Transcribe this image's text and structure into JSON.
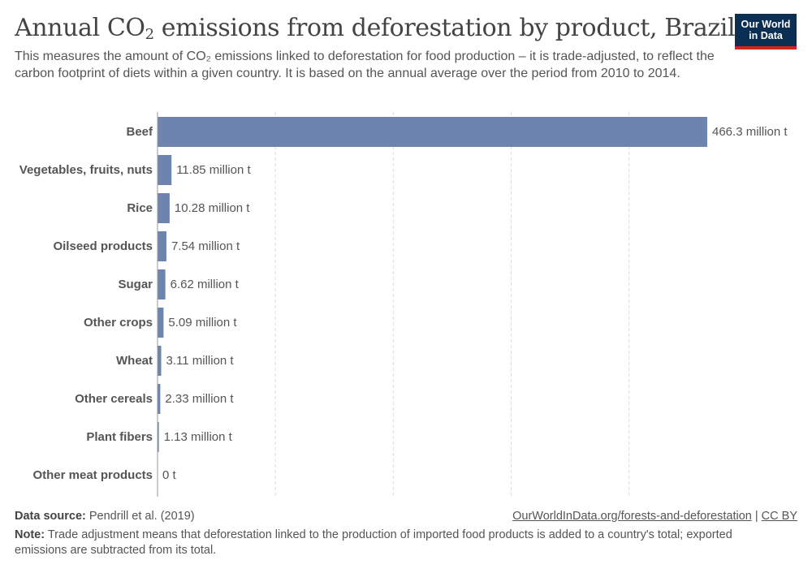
{
  "header": {
    "title_prefix": "Annual CO",
    "title_sub": "2",
    "title_suffix": " emissions from deforestation by product, Brazil",
    "subtitle": "This measures the amount of CO₂ emissions linked to deforestation for food production – it is trade-adjusted, to reflect the carbon footprint of diets within a given country. It is based on the annual average over the period from 2010 to 2014."
  },
  "logo": {
    "line1": "Our World",
    "line2": "in Data"
  },
  "chart_data": {
    "type": "bar",
    "orientation": "horizontal",
    "categories": [
      "Beef",
      "Vegetables, fruits, nuts",
      "Rice",
      "Oilseed products",
      "Sugar",
      "Other crops",
      "Wheat",
      "Other cereals",
      "Plant fibers",
      "Other meat products"
    ],
    "values": [
      466.3,
      11.85,
      10.28,
      7.54,
      6.62,
      5.09,
      3.11,
      2.33,
      1.13,
      0
    ],
    "value_labels": [
      "466.3 million t",
      "11.85 million t",
      "10.28 million t",
      "7.54 million t",
      "6.62 million t",
      "5.09 million t",
      "3.11 million t",
      "2.33 million t",
      "1.13 million t",
      "0 t"
    ],
    "unit": "million t",
    "xlim": [
      0,
      466.3
    ],
    "gridlines": [
      100,
      200,
      300,
      400
    ],
    "grid": true,
    "legend": false,
    "bar_color": "#6d84ae"
  },
  "footer": {
    "source_label": "Data source:",
    "source_text": " Pendrill et al. (2019)",
    "url_text": "OurWorldInData.org/forests-and-deforestation",
    "separator": " | ",
    "license": "CC BY",
    "note_label": "Note:",
    "note_text": " Trade adjustment means that deforestation linked to the production of imported food products is added to a country's total; exported emissions are subtracted from its total."
  }
}
